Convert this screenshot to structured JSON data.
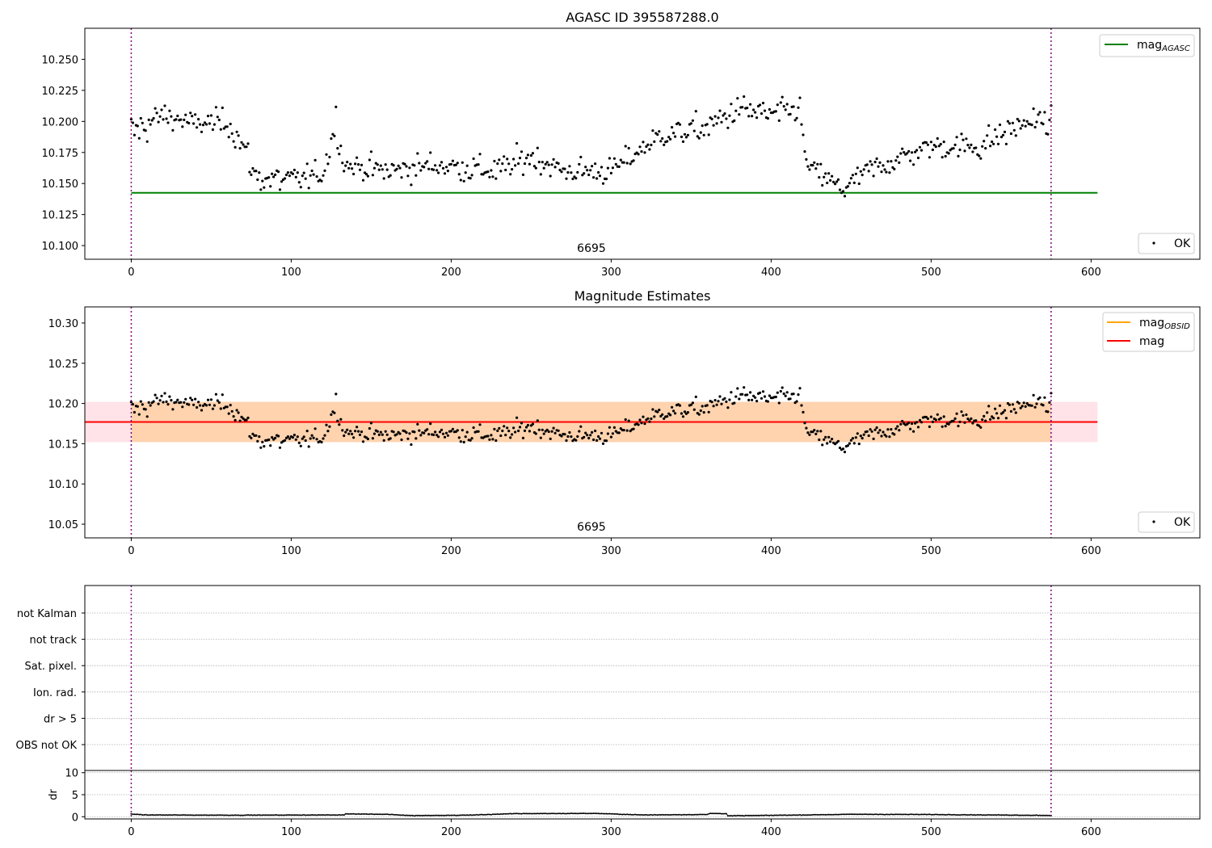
{
  "chart_data": [
    {
      "type": "scatter",
      "title": "AGASC ID 395587288.0",
      "xlim": [
        -29,
        668
      ],
      "ylim": [
        10.089,
        10.275
      ],
      "x_ticks": [
        "0",
        "100",
        "200",
        "300",
        "400",
        "500",
        "600"
      ],
      "y_ticks": [
        "10.100",
        "10.125",
        "10.150",
        "10.175",
        "10.200",
        "10.225",
        "10.250"
      ],
      "obsid_label": "6695",
      "obsid_boundaries": [
        0,
        575
      ],
      "reference_lines": [
        {
          "name_main": "mag",
          "name_sub": "AGASC",
          "value": 10.1425,
          "x_range": [
            0,
            604
          ],
          "color": "#008000"
        }
      ],
      "series": [
        {
          "name": "OK",
          "color": "#000000",
          "mode": "points",
          "count": 576,
          "segments": [
            {
              "x": 0,
              "y": 10.19,
              "s": 0.02
            },
            {
              "x": 20,
              "y": 10.205,
              "s": 0.012
            },
            {
              "x": 40,
              "y": 10.198,
              "s": 0.01
            },
            {
              "x": 60,
              "y": 10.2,
              "s": 0.012
            },
            {
              "x": 70,
              "y": 10.18,
              "s": 0.014
            },
            {
              "x": 78,
              "y": 10.155,
              "s": 0.015
            },
            {
              "x": 100,
              "y": 10.152,
              "s": 0.014
            },
            {
              "x": 120,
              "y": 10.158,
              "s": 0.01
            },
            {
              "x": 128,
              "y": 10.2,
              "s": 0.015
            },
            {
              "x": 133,
              "y": 10.165,
              "s": 0.01
            },
            {
              "x": 160,
              "y": 10.16,
              "s": 0.012
            },
            {
              "x": 190,
              "y": 10.165,
              "s": 0.012
            },
            {
              "x": 230,
              "y": 10.16,
              "s": 0.014
            },
            {
              "x": 250,
              "y": 10.172,
              "s": 0.012
            },
            {
              "x": 270,
              "y": 10.16,
              "s": 0.012
            },
            {
              "x": 300,
              "y": 10.16,
              "s": 0.012
            },
            {
              "x": 330,
              "y": 10.188,
              "s": 0.01
            },
            {
              "x": 360,
              "y": 10.195,
              "s": 0.014
            },
            {
              "x": 380,
              "y": 10.21,
              "s": 0.013
            },
            {
              "x": 400,
              "y": 10.205,
              "s": 0.013
            },
            {
              "x": 418,
              "y": 10.21,
              "s": 0.01
            },
            {
              "x": 422,
              "y": 10.165,
              "s": 0.01
            },
            {
              "x": 445,
              "y": 10.145,
              "s": 0.01
            },
            {
              "x": 460,
              "y": 10.16,
              "s": 0.011
            },
            {
              "x": 480,
              "y": 10.17,
              "s": 0.012
            },
            {
              "x": 500,
              "y": 10.18,
              "s": 0.01
            },
            {
              "x": 530,
              "y": 10.18,
              "s": 0.014
            },
            {
              "x": 560,
              "y": 10.2,
              "s": 0.012
            },
            {
              "x": 575,
              "y": 10.2,
              "s": 0.012
            }
          ]
        }
      ],
      "legend": {
        "upper": [
          "mag AGASC"
        ],
        "lower": [
          "OK"
        ],
        "placement": "upper right / lower right"
      },
      "grid": false
    },
    {
      "type": "scatter",
      "title": "Magnitude Estimates",
      "xlim": [
        -29,
        668
      ],
      "ylim": [
        10.033,
        10.32
      ],
      "x_ticks": [
        "0",
        "100",
        "200",
        "300",
        "400",
        "500",
        "600"
      ],
      "y_ticks": [
        "10.05",
        "10.10",
        "10.15",
        "10.20",
        "10.25",
        "10.30"
      ],
      "obsid_label": "6695",
      "obsid_boundaries": [
        0,
        575
      ],
      "reference_lines": [
        {
          "name_main": "mag",
          "name_sub": "OBSID",
          "value": 10.177,
          "x_range": [
            0,
            575
          ],
          "color": "#ffa500"
        },
        {
          "name_main": "mag",
          "name_sub": "",
          "value": 10.177,
          "x_range": [
            -29,
            604
          ],
          "color": "#ff0000"
        }
      ],
      "bands": [
        {
          "y": [
            10.152,
            10.202
          ],
          "x_range": [
            -29,
            604
          ],
          "color": "#ffc0cb",
          "opacity": 0.45
        },
        {
          "y": [
            10.152,
            10.202
          ],
          "x_range": [
            0,
            575
          ],
          "color": "#ffa500",
          "opacity": 0.25
        }
      ],
      "series": [
        {
          "name": "OK",
          "color": "#000000",
          "mode": "points",
          "count": 576,
          "note": "same points as top panel"
        }
      ],
      "legend": {
        "upper": [
          "mag OBSID",
          "mag"
        ],
        "lower": [
          "OK"
        ],
        "placement": "upper right / lower right"
      },
      "grid": false
    },
    {
      "type": "scatter",
      "title": "",
      "xlim": [
        -29,
        668
      ],
      "y_categories": [
        "not Kalman",
        "not track",
        "Sat. pixel.",
        "Ion. rad.",
        "dr > 5",
        "OBS not OK"
      ],
      "flag_points": [],
      "obsid_boundaries": [
        0,
        575
      ],
      "grid": true
    },
    {
      "type": "line",
      "title": "",
      "xlim": [
        -29,
        668
      ],
      "ylim": [
        -0.5,
        10.5
      ],
      "x_ticks": [
        "0",
        "100",
        "200",
        "300",
        "400",
        "500",
        "600"
      ],
      "y_ticks": [
        "0",
        "5",
        "10"
      ],
      "ylabel": "dr",
      "obsid_boundaries": [
        0,
        575
      ],
      "series": [
        {
          "name": "",
          "color": "#000000",
          "mode": "line+points",
          "count": 576,
          "segments": [
            {
              "x": 0,
              "y": 0.6
            },
            {
              "x": 10,
              "y": 0.4
            },
            {
              "x": 60,
              "y": 0.35
            },
            {
              "x": 133,
              "y": 0.4
            },
            {
              "x": 134,
              "y": 0.65
            },
            {
              "x": 160,
              "y": 0.55
            },
            {
              "x": 175,
              "y": 0.25
            },
            {
              "x": 210,
              "y": 0.35
            },
            {
              "x": 240,
              "y": 0.7
            },
            {
              "x": 290,
              "y": 0.75
            },
            {
              "x": 320,
              "y": 0.4
            },
            {
              "x": 360,
              "y": 0.5
            },
            {
              "x": 362,
              "y": 0.75
            },
            {
              "x": 372,
              "y": 0.7
            },
            {
              "x": 373,
              "y": 0.2
            },
            {
              "x": 420,
              "y": 0.4
            },
            {
              "x": 450,
              "y": 0.55
            },
            {
              "x": 500,
              "y": 0.5
            },
            {
              "x": 575,
              "y": 0.3
            }
          ]
        }
      ],
      "grid": true
    }
  ]
}
